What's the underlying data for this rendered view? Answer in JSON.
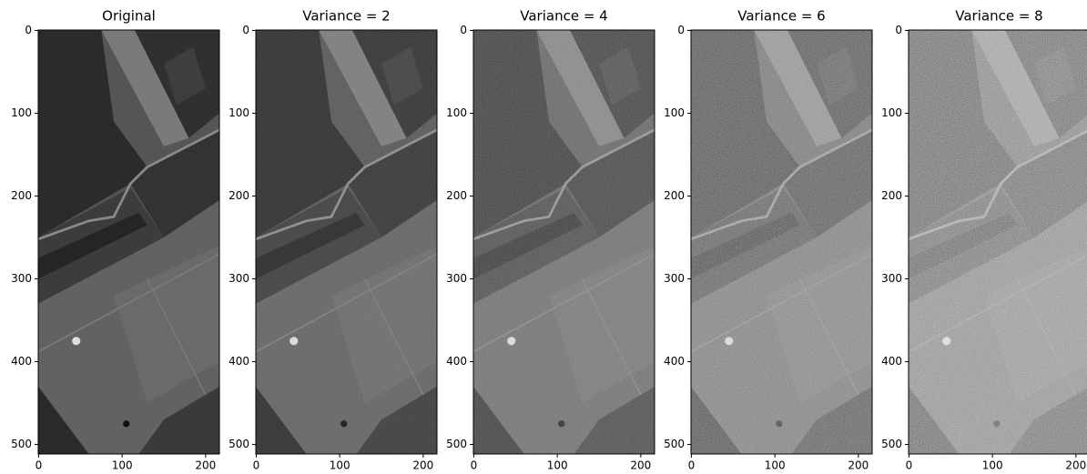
{
  "chart_data": [
    {
      "type": "image",
      "title": "Original",
      "xlim": [
        -0.5,
        216.5
      ],
      "ylim": [
        511.5,
        -0.5
      ],
      "xticks": [
        0,
        100,
        200
      ],
      "yticks": [
        0,
        100,
        200,
        300,
        400,
        500
      ]
    },
    {
      "type": "image",
      "title": "Variance = 2",
      "xlim": [
        -0.5,
        216.5
      ],
      "ylim": [
        511.5,
        -0.5
      ],
      "xticks": [
        0,
        100,
        200
      ],
      "yticks": [
        0,
        100,
        200,
        300,
        400,
        500
      ]
    },
    {
      "type": "image",
      "title": "Variance = 4",
      "xlim": [
        -0.5,
        216.5
      ],
      "ylim": [
        511.5,
        -0.5
      ],
      "xticks": [
        0,
        100,
        200
      ],
      "yticks": [
        0,
        100,
        200,
        300,
        400,
        500
      ]
    },
    {
      "type": "image",
      "title": "Variance = 6",
      "xlim": [
        -0.5,
        216.5
      ],
      "ylim": [
        511.5,
        -0.5
      ],
      "xticks": [
        0,
        100,
        200
      ],
      "yticks": [
        0,
        100,
        200,
        300,
        400,
        500
      ]
    },
    {
      "type": "image",
      "title": "Variance = 8",
      "xlim": [
        -0.5,
        216.5
      ],
      "ylim": [
        511.5,
        -0.5
      ],
      "xticks": [
        0,
        100,
        200
      ],
      "yticks": [
        0,
        100,
        200,
        300,
        400,
        500
      ]
    }
  ]
}
